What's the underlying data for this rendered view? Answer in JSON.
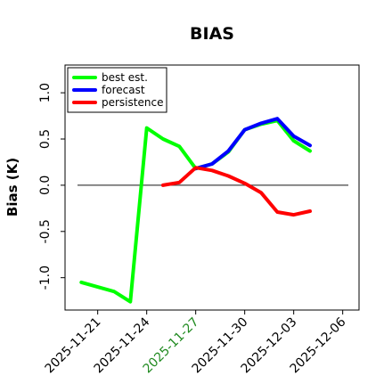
{
  "chart_data": {
    "type": "line",
    "title": "BIAS",
    "xlabel": "",
    "ylabel": "Bias (K)",
    "ylim": [
      -1.35,
      1.3
    ],
    "xlim": [
      "2025-11-19",
      "2025-12-07"
    ],
    "yticks": [
      -1.0,
      -0.5,
      0.0,
      0.5,
      1.0
    ],
    "ytick_labels": [
      "-1.0",
      "-0.5",
      "0.0",
      "0.5",
      "1.0"
    ],
    "xticks": [
      "2025-11-21",
      "2025-11-24",
      "2025-11-27",
      "2025-11-30",
      "2025-12-03",
      "2025-12-06"
    ],
    "xtick_labels": [
      "2025-11-21",
      "2025-11-24",
      "2025-11-27",
      "2025-11-30",
      "2025-12-03",
      "2025-12-06"
    ],
    "highlight_tick": "2025-11-27",
    "highlight_color": "#228b22",
    "zero_line": true,
    "grid": false,
    "legend_position": "top-left",
    "series": [
      {
        "name": "best est.",
        "color": "#00ff00",
        "x": [
          "2025-11-20",
          "2025-11-22",
          "2025-11-23",
          "2025-11-24",
          "2025-11-25",
          "2025-11-26",
          "2025-11-27",
          "2025-11-28",
          "2025-11-29",
          "2025-11-30",
          "2025-12-01",
          "2025-12-02",
          "2025-12-03",
          "2025-12-04"
        ],
        "values": [
          -1.05,
          -1.15,
          -1.26,
          0.62,
          0.5,
          0.42,
          0.18,
          0.23,
          0.36,
          0.6,
          0.66,
          0.7,
          0.48,
          0.37
        ]
      },
      {
        "name": "forecast",
        "color": "#0000ff",
        "x": [
          "2025-11-27",
          "2025-11-28",
          "2025-11-29",
          "2025-11-30",
          "2025-12-01",
          "2025-12-02",
          "2025-12-03",
          "2025-12-04"
        ],
        "values": [
          0.18,
          0.23,
          0.37,
          0.6,
          0.67,
          0.72,
          0.53,
          0.43
        ]
      },
      {
        "name": "persistence",
        "color": "#ff0000",
        "x": [
          "2025-11-25",
          "2025-11-26",
          "2025-11-27",
          "2025-11-28",
          "2025-11-29",
          "2025-11-30",
          "2025-12-01",
          "2025-12-02",
          "2025-12-03",
          "2025-12-04"
        ],
        "values": [
          0.0,
          0.03,
          0.19,
          0.16,
          0.1,
          0.02,
          -0.08,
          -0.29,
          -0.32,
          -0.28
        ]
      }
    ]
  }
}
